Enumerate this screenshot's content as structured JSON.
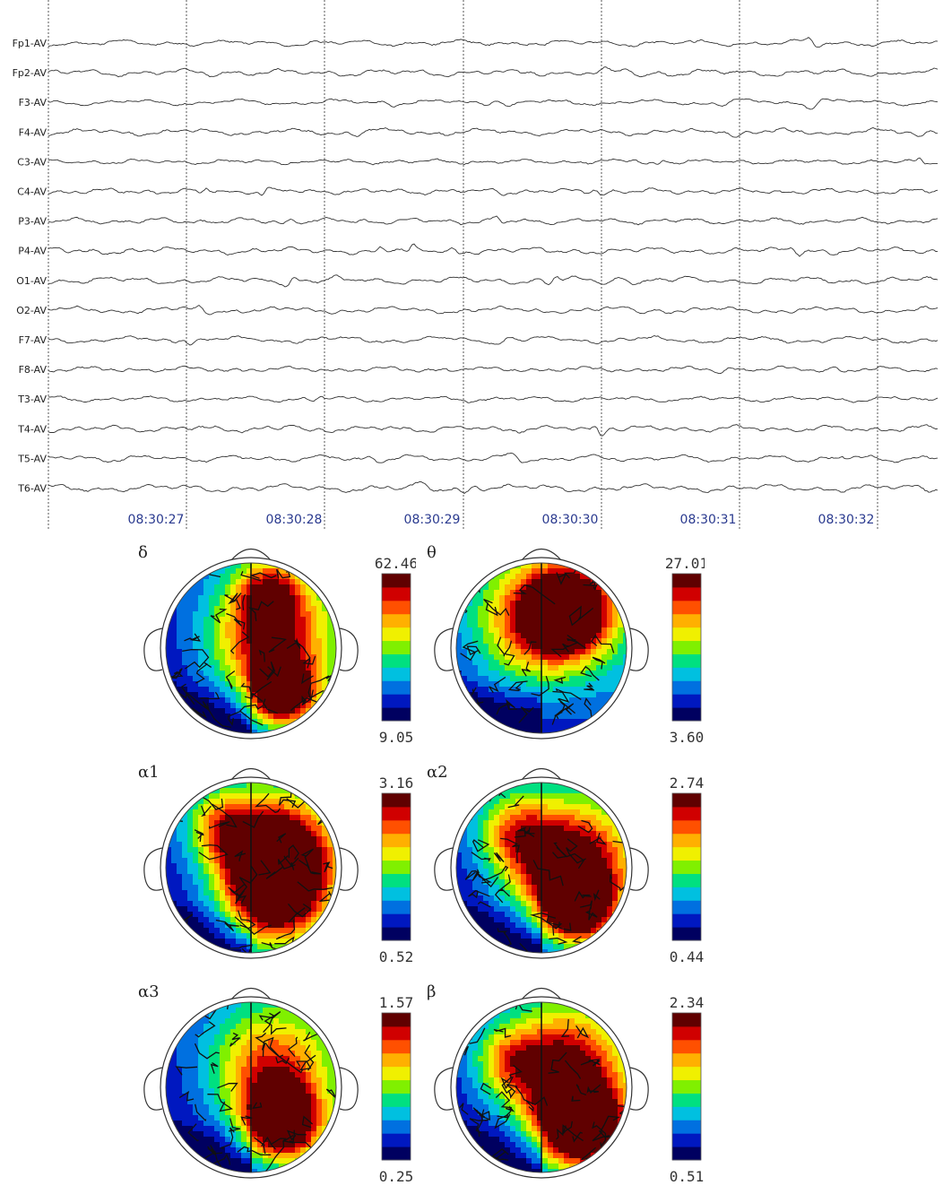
{
  "eeg": {
    "channels": [
      "Fp1-AV",
      "Fp2-AV",
      "F3-AV",
      "F4-AV",
      "C3-AV",
      "C4-AV",
      "P3-AV",
      "P4-AV",
      "O1-AV",
      "O2-AV",
      "F7-AV",
      "F8-AV",
      "T3-AV",
      "T4-AV",
      "T5-AV",
      "T6-AV"
    ],
    "time_labels": [
      "08:30:27",
      "08:30:28",
      "08:30:29",
      "08:30:30",
      "08:30:31",
      "08:30:32"
    ],
    "gridline_color": "#555555",
    "trace_color": "#333333",
    "time_label_color": "#2a3a8f"
  },
  "topomaps": [
    {
      "band": "δ",
      "max": "62.46",
      "min": "9.05"
    },
    {
      "band": "θ",
      "max": "27.01",
      "min": "3.60"
    },
    {
      "band": "α1",
      "max": "3.16",
      "min": "0.52"
    },
    {
      "band": "α2",
      "max": "2.74",
      "min": "0.44"
    },
    {
      "band": "α3",
      "max": "1.57",
      "min": "0.25"
    },
    {
      "band": "β",
      "max": "2.34",
      "min": "0.51"
    }
  ],
  "colormap": [
    "#000060",
    "#0018c0",
    "#0070e0",
    "#00c0e0",
    "#00e080",
    "#80f000",
    "#f0f000",
    "#ffb000",
    "#ff5000",
    "#d00000",
    "#600000"
  ]
}
